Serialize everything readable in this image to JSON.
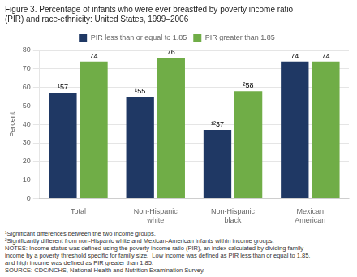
{
  "chart_data": {
    "type": "bar",
    "title": [
      "Figure 3. Percentage of infants who were ever breastfed by poverty income ratio",
      "(PIR) and race-ethnicity: United States, 1999–2006"
    ],
    "categories": [
      "Total",
      "Non-Hispanic\nwhite",
      "Non-Hispanic\nblack",
      "Mexican\nAmerican"
    ],
    "series": [
      {
        "name": "PIR less than or equal to 1.85",
        "color": "#1f3864",
        "values": [
          57,
          55,
          37,
          74
        ],
        "value_labels": [
          "¹57",
          "¹55",
          "¹²37",
          "74"
        ]
      },
      {
        "name": "PIR greater than 1.85",
        "color": "#70ad47",
        "values": [
          74,
          76,
          58,
          74
        ],
        "value_labels": [
          "74",
          "76",
          "²58",
          "74"
        ]
      }
    ],
    "ylabel": "Percent",
    "ylim": [
      0,
      80
    ],
    "yticks": [
      0,
      10,
      20,
      30,
      40,
      50,
      60,
      70,
      80
    ],
    "grid": true,
    "legend": "top",
    "data_labels": true,
    "notes": [
      "¹Significant differences between the two income groups.",
      "²Significantly different from non-Hispanic white and Mexican-American infants within income groups.",
      "NOTES: Income status was defined using the poverty income ratio (PIR), an index calculated by dividing family",
      "income by a poverty threshold specific for family size.  Low income was defined as PIR less than or equal to 1.85,",
      "and high income was defined as PIR greater than 1.85.",
      "SOURCE: CDC/NCHS, National Health and Nutrition Examination Survey."
    ]
  }
}
